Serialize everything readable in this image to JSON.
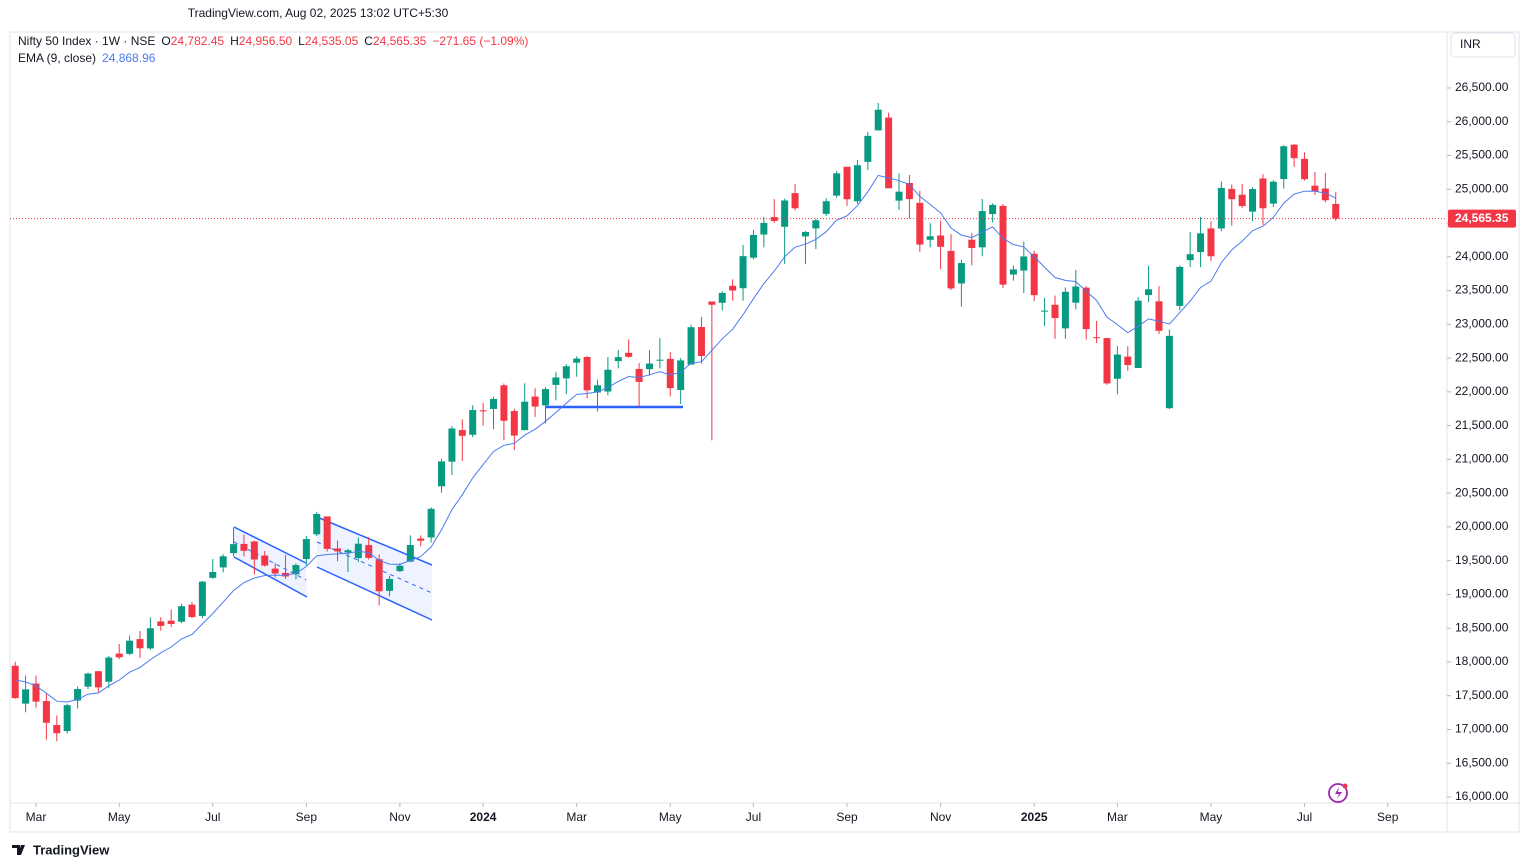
{
  "header": {
    "title": "TradingView.com, Aug 02, 2025 13:02 UTC+5:30"
  },
  "footer": {
    "brand": "TradingView"
  },
  "chart_data": {
    "type": "candlestick",
    "symbol": "Nifty 50 Index · 1W · NSE",
    "ohlc_legend": [
      {
        "key": "O",
        "value": "24,782.45"
      },
      {
        "key": "H",
        "value": "24,956.50"
      },
      {
        "key": "L",
        "value": "24,535.05"
      },
      {
        "key": "C",
        "value": "24,565.35"
      }
    ],
    "change": "−271.65 (−1.09%)",
    "currency": "INR",
    "last_price_label": "24,565.35",
    "up_color": "#089981",
    "down_color": "#f23645",
    "open": [
      17944,
      17383,
      17680,
      17421,
      17066,
      16977,
      17428,
      17634,
      17863,
      17707,
      18124,
      18121,
      18339,
      18201,
      18600,
      18612,
      18596,
      18849,
      18682,
      19246,
      19400,
      19612,
      19748,
      19784,
      19576,
      19383,
      19320,
      19298,
      19525,
      19890,
      20155,
      19681,
      19622,
      19539,
      19731,
      19521,
      19053,
      19346,
      19486,
      19828,
      19844,
      20602,
      20966,
      21434,
      21365,
      21727,
      21747,
      22097,
      21716,
      21433,
      21930,
      21800,
      22103,
      22200,
      22432,
      22517,
      21990,
      22005,
      22455,
      22578,
      22339,
      22336,
      22475,
      22489,
      22028,
      22404,
      22960,
      23338,
      23319,
      23570,
      23535,
      23987,
      24330,
      24588,
      24445,
      24943,
      24302,
      24420,
      24636,
      24906,
      25333,
      24823,
      25406,
      25872,
      26061,
      24832,
      25093,
      24798,
      24251,
      24315,
      24087,
      23605,
      24253,
      24140,
      24633,
      24754,
      23738,
      23796,
      24045,
      23196,
      23290,
      22940,
      23320,
      23543,
      22810,
      22796,
      22194,
      22522,
      22354,
      23433,
      23341,
      21758,
      23273,
      23950,
      24070,
      24420,
      24420,
      25005,
      24919,
      24669,
      25160,
      24788,
      25151,
      25661,
      25450,
      25053,
      25011,
      24782.45
    ],
    "high": [
      18004,
      17799,
      17799,
      17529,
      17207,
      17381,
      17638,
      17842,
      17863,
      18089,
      18267,
      18389,
      18459,
      18662,
      18662,
      18777,
      18864,
      18887,
      19201,
      19523,
      19595,
      19991,
      19887,
      19795,
      19645,
      19465,
      19584,
      19458,
      19867,
      20222,
      20155,
      19798,
      19675,
      19843,
      19849,
      19593,
      19276,
      19463,
      19875,
      19875,
      20291,
      21006,
      21492,
      21593,
      21801,
      21834,
      21928,
      22124,
      21750,
      22127,
      22053,
      22069,
      22297,
      22412,
      22526,
      22527,
      22180,
      22516,
      22619,
      22776,
      22427,
      22620,
      22795,
      22588,
      22502,
      22993,
      23110,
      23338,
      23490,
      23667,
      24174,
      24401,
      24592,
      24854,
      24861,
      25078,
      24382,
      24563,
      24867,
      25268,
      25333,
      25433,
      25849,
      26277,
      26134,
      25234,
      25212,
      24978,
      24498,
      24537,
      24336,
      23956,
      24354,
      24857,
      24792,
      24781,
      23869,
      24226,
      24089,
      23391,
      23426,
      23546,
      23807,
      23568,
      23050,
      22801,
      22677,
      22676,
      23402,
      23869,
      23565,
      22923,
      23872,
      24365,
      24589,
      24526,
      25116,
      25070,
      25079,
      25030,
      25222,
      25137,
      25654,
      25669,
      25549,
      25255,
      25241,
      24956.5
    ],
    "low": [
      17455,
      17255,
      17324,
      16850,
      16828,
      16940,
      17312,
      17598,
      17553,
      17612,
      18042,
      18101,
      18060,
      18178,
      18464,
      18516,
      18575,
      18647,
      18647,
      19234,
      19327,
      19563,
      19563,
      19296,
      19412,
      19253,
      19229,
      19223,
      19432,
      19865,
      19635,
      19492,
      19333,
      19480,
      19518,
      18837,
      18973,
      19329,
      19479,
      19713,
      19768,
      20507,
      20769,
      20977,
      21329,
      21500,
      21448,
      21285,
      21137,
      21430,
      21629,
      21530,
      21875,
      21964,
      22224,
      21906,
      21710,
      21947,
      22348,
      22504,
      21777,
      22238,
      22348,
      21932,
      21821,
      22404,
      22417,
      21281,
      23206,
      23350,
      23350,
      23960,
      24141,
      24500,
      23893,
      24686,
      23893,
      24116,
      24607,
      24874,
      24753,
      24783,
      25285,
      25871,
      25014,
      24694,
      24567,
      24074,
      24140,
      23816,
      23509,
      23263,
      23873,
      24008,
      24510,
      23538,
      23647,
      23461,
      23345,
      22976,
      22786,
      22787,
      23223,
      22774,
      22725,
      22105,
      21964,
      22314,
      22354,
      23327,
      22857,
      21743,
      23207,
      23847,
      23847,
      23935,
      24378,
      24462,
      24720,
      24526,
      24473,
      24737,
      25008,
      25331,
      25129,
      24918,
      24807,
      24535.05
    ],
    "close": [
      17465,
      17594,
      17413,
      17100,
      16945,
      17360,
      17599,
      17828,
      17624,
      18065,
      18069,
      18315,
      18203,
      18499,
      18534,
      18563,
      18826,
      18665,
      19189,
      19332,
      19565,
      19745,
      19646,
      19517,
      19428,
      19310,
      19266,
      19435,
      19820,
      20192,
      19674,
      19638,
      19654,
      19751,
      19542,
      19047,
      19230,
      19425,
      19732,
      19795,
      20268,
      20970,
      21457,
      21349,
      21731,
      21711,
      21895,
      21572,
      21353,
      21854,
      21783,
      22041,
      22213,
      22379,
      22493,
      22023,
      22097,
      22327,
      22514,
      22519,
      22147,
      22419,
      22476,
      22055,
      22466,
      22957,
      22531,
      23290,
      23465,
      23501,
      24010,
      24323,
      24502,
      24530,
      24834,
      24718,
      24367,
      24541,
      24823,
      25236,
      24852,
      25356,
      25791,
      26178,
      25015,
      24964,
      24854,
      24181,
      24304,
      24148,
      23532,
      23907,
      24131,
      24677,
      24768,
      23588,
      23813,
      24005,
      23432,
      23203,
      23092,
      23482,
      23560,
      22929,
      22796,
      22125,
      22553,
      22397,
      23350,
      23519,
      22904,
      22829,
      23851,
      24039,
      24347,
      24008,
      25020,
      24853,
      24751,
      25003,
      24719,
      25112,
      25637,
      25461,
      25150,
      24968,
      24837,
      24565.35
    ],
    "series": [
      {
        "name": "EMA (9, close)",
        "color": "#4a7cf0",
        "value_label": "24,868.96",
        "values": [
          17733,
          17705,
          17647,
          17538,
          17419,
          17407,
          17445,
          17522,
          17542,
          17647,
          17731,
          17848,
          17919,
          18035,
          18135,
          18221,
          18342,
          18407,
          18563,
          18717,
          18887,
          19059,
          19176,
          19244,
          19281,
          19287,
          19283,
          19313,
          19414,
          19570,
          19591,
          19600,
          19611,
          19639,
          19620,
          19505,
          19450,
          19445,
          19502,
          19561,
          19702,
          19956,
          20256,
          20475,
          20726,
          20923,
          21117,
          21208,
          21237,
          21360,
          21445,
          21564,
          21694,
          21831,
          21963,
          21975,
          21999,
          22065,
          22155,
          22228,
          22212,
          22253,
          22298,
          22249,
          22292,
          22425,
          22446,
          22615,
          22785,
          22928,
          23144,
          23380,
          23604,
          23789,
          23998,
          24142,
          24187,
          24258,
          24371,
          24544,
          24606,
          24756,
          24963,
          25206,
          25168,
          25127,
          25072,
          24894,
          24776,
          24650,
          24426,
          24322,
          24284,
          24363,
          24444,
          24273,
          24181,
          24146,
          24003,
          23843,
          23693,
          23651,
          23633,
          23492,
          23353,
          23107,
          22996,
          22876,
          22971,
          23081,
          23046,
          23003,
          23173,
          23346,
          23546,
          23638,
          23914,
          24102,
          24232,
          24386,
          24453,
          24585,
          24795,
          24928,
          24972,
          24971,
          24944,
          24868.96
        ]
      }
    ],
    "xlim": [
      -0.5,
      137.7
    ],
    "xticks": [
      {
        "value": 2,
        "label": "Mar"
      },
      {
        "value": 10,
        "label": "May"
      },
      {
        "value": 19,
        "label": "Jul"
      },
      {
        "value": 28,
        "label": "Sep"
      },
      {
        "value": 37,
        "label": "Nov"
      },
      {
        "value": 45,
        "label": "2024"
      },
      {
        "value": 54,
        "label": "Mar"
      },
      {
        "value": 63,
        "label": "May"
      },
      {
        "value": 71,
        "label": "Jul"
      },
      {
        "value": 80,
        "label": "Sep"
      },
      {
        "value": 89,
        "label": "Nov"
      },
      {
        "value": 98,
        "label": "2025"
      },
      {
        "value": 106,
        "label": "Mar"
      },
      {
        "value": 115,
        "label": "May"
      },
      {
        "value": 124,
        "label": "Jul"
      },
      {
        "value": 132,
        "label": "Sep"
      }
    ],
    "ylim": [
      15482,
      27329
    ],
    "yticks": [
      {
        "value": 16000,
        "label": "16,000.00"
      },
      {
        "value": 16500,
        "label": "16,500.00"
      },
      {
        "value": 17000,
        "label": "17,000.00"
      },
      {
        "value": 17500,
        "label": "17,500.00"
      },
      {
        "value": 18000,
        "label": "18,000.00"
      },
      {
        "value": 18500,
        "label": "18,500.00"
      },
      {
        "value": 19000,
        "label": "19,000.00"
      },
      {
        "value": 19500,
        "label": "19,500.00"
      },
      {
        "value": 20000,
        "label": "20,000.00"
      },
      {
        "value": 20500,
        "label": "20,500.00"
      },
      {
        "value": 21000,
        "label": "21,000.00"
      },
      {
        "value": 21500,
        "label": "21,500.00"
      },
      {
        "value": 22000,
        "label": "22,000.00"
      },
      {
        "value": 22500,
        "label": "22,500.00"
      },
      {
        "value": 23000,
        "label": "23,000.00"
      },
      {
        "value": 23500,
        "label": "23,500.00"
      },
      {
        "value": 24000,
        "label": "24,000.00"
      },
      {
        "value": 24500,
        "label": "24,500.00"
      },
      {
        "value": 25000,
        "label": "25,000.00"
      },
      {
        "value": 25500,
        "label": "25,500.00"
      },
      {
        "value": 26000,
        "label": "26,000.00"
      },
      {
        "value": 26500,
        "label": "26,500.00"
      }
    ],
    "grid": false
  }
}
